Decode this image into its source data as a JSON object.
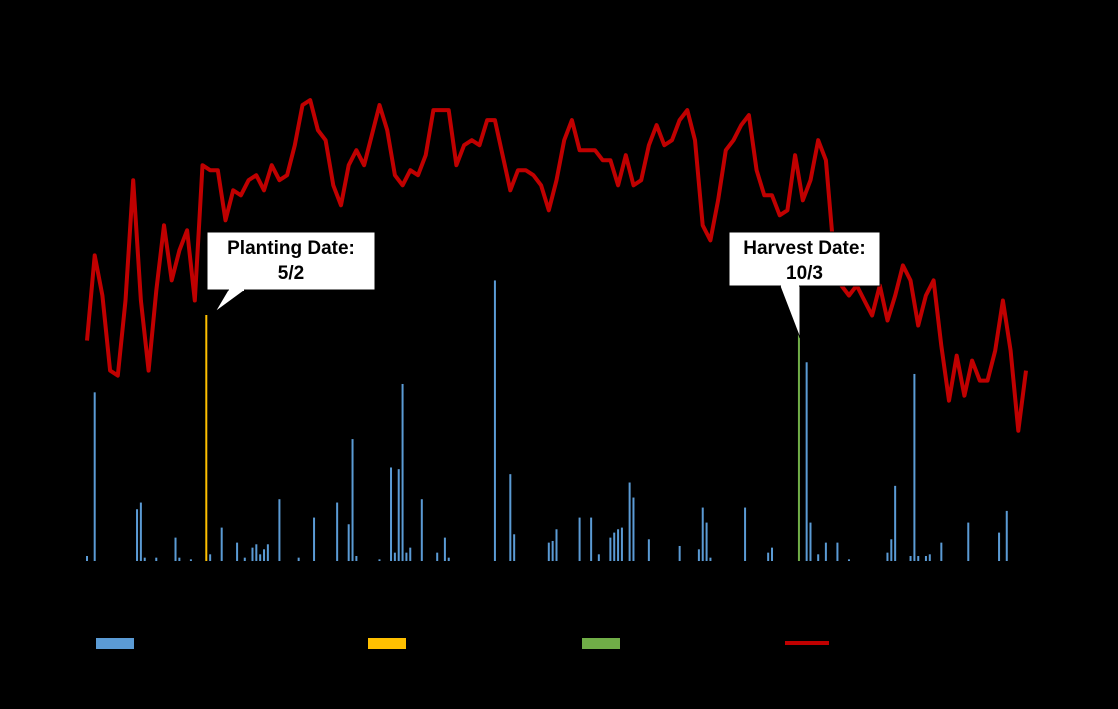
{
  "chart_data": {
    "type": "combo",
    "xlim": [
      0,
      244
    ],
    "ylim": [
      0,
      3
    ],
    "y2lim": [
      0,
      100
    ],
    "series": [
      {
        "kind": "bar",
        "color": "#5b9bd5",
        "x": [
          0,
          2,
          13,
          14,
          15,
          18,
          23,
          24,
          27,
          32,
          35,
          39,
          41,
          43,
          44,
          45,
          46,
          47,
          50,
          55,
          59,
          65,
          68,
          69,
          70,
          76,
          79,
          80,
          81,
          82,
          83,
          84,
          87,
          91,
          93,
          94,
          106,
          110,
          111,
          120,
          121,
          122,
          128,
          131,
          133,
          136,
          137,
          138,
          139,
          141,
          142,
          146,
          154,
          159,
          160,
          161,
          162,
          171,
          177,
          178,
          187,
          188,
          190,
          192,
          195,
          198,
          208,
          209,
          210,
          214,
          215,
          216,
          218,
          219,
          222,
          229,
          237,
          239
        ],
        "values": [
          0.03,
          1.01,
          0.31,
          0.35,
          0.02,
          0.02,
          0.14,
          0.02,
          0.01,
          0.04,
          0.2,
          0.11,
          0.02,
          0.08,
          0.1,
          0.04,
          0.07,
          0.1,
          0.37,
          0.02,
          0.26,
          0.35,
          0.22,
          0.73,
          0.03,
          0.01,
          0.56,
          0.05,
          0.55,
          1.06,
          0.05,
          0.08,
          0.37,
          0.05,
          0.14,
          0.02,
          1.68,
          0.52,
          0.16,
          0.11,
          0.12,
          0.19,
          0.26,
          0.26,
          0.04,
          0.14,
          0.17,
          0.19,
          0.2,
          0.47,
          0.38,
          0.13,
          0.09,
          0.07,
          0.32,
          0.23,
          0.02,
          0.32,
          0.05,
          0.08,
          1.19,
          0.23,
          0.04,
          0.11,
          0.11,
          0.01,
          0.05,
          0.13,
          0.45,
          0.03,
          1.12,
          0.03,
          0.03,
          0.04,
          0.11,
          0.23,
          0.17,
          0.3
        ]
      },
      {
        "kind": "line",
        "axis": "y2",
        "color": "#c00000",
        "x": [
          0,
          2,
          4,
          6,
          8,
          10,
          12,
          14,
          16,
          18,
          20,
          22,
          24,
          26,
          28,
          30,
          32,
          34,
          36,
          38,
          40,
          42,
          44,
          46,
          48,
          50,
          52,
          54,
          56,
          58,
          60,
          62,
          64,
          66,
          68,
          70,
          72,
          74,
          76,
          78,
          80,
          82,
          84,
          86,
          88,
          90,
          92,
          94,
          96,
          98,
          100,
          102,
          104,
          106,
          108,
          110,
          112,
          114,
          116,
          118,
          120,
          122,
          124,
          126,
          128,
          130,
          132,
          134,
          136,
          138,
          140,
          142,
          144,
          146,
          148,
          150,
          152,
          154,
          156,
          158,
          160,
          162,
          164,
          166,
          168,
          170,
          172,
          174,
          176,
          178,
          180,
          182,
          184,
          186,
          188,
          190,
          192,
          194,
          196,
          198,
          200,
          202,
          204,
          206,
          208,
          210,
          212,
          214,
          216,
          218,
          220,
          222,
          224,
          226,
          228,
          230,
          232,
          234,
          236,
          238,
          240,
          242,
          244
        ],
        "values": [
          44,
          61,
          53,
          38,
          37,
          52,
          76,
          52,
          38,
          54,
          67,
          56,
          62,
          66,
          52,
          79,
          78,
          78,
          68,
          74,
          73,
          76,
          77,
          74,
          79,
          76,
          77,
          83,
          91,
          92,
          86,
          84,
          75,
          71,
          79,
          82,
          79,
          85,
          91,
          86,
          77,
          75,
          78,
          77,
          81,
          90,
          90,
          90,
          79,
          83,
          84,
          83,
          88,
          88,
          81,
          74,
          78,
          78,
          77,
          75,
          70,
          76,
          84,
          88,
          82,
          82,
          82,
          80,
          80,
          75,
          81,
          75,
          76,
          83,
          87,
          83,
          84,
          88,
          90,
          84,
          67,
          64,
          72,
          82,
          84,
          87,
          89,
          78,
          73,
          73,
          69,
          70,
          81,
          72,
          76,
          84,
          80,
          62,
          55,
          53,
          55,
          52,
          49,
          55,
          48,
          53,
          59,
          56,
          47,
          53,
          56,
          43,
          32,
          41,
          33,
          40,
          36,
          36,
          42,
          52,
          42,
          26,
          38
        ]
      }
    ],
    "annotations": [
      {
        "title": "Planting Date:",
        "date": "5/2",
        "x": 31,
        "color": "#ffc000"
      },
      {
        "title": "Harvest Date:",
        "date": "10/3",
        "x": 185,
        "color": "#70ad47"
      }
    ]
  }
}
